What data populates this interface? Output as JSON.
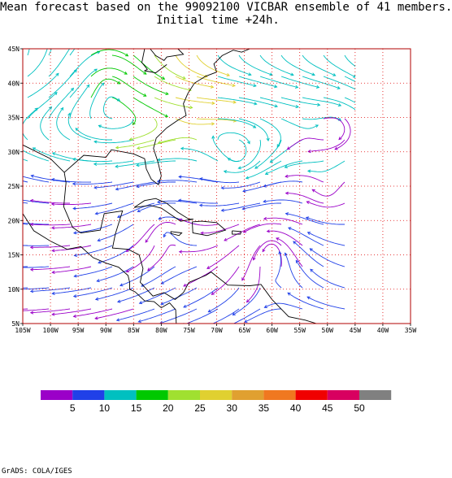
{
  "title": {
    "line1": "Mean forecast based on the 99092100 VICBAR ensemble of 41 members.",
    "line2": "Initial time +24h."
  },
  "map": {
    "lat_labels": [
      "45N",
      "40N",
      "35N",
      "30N",
      "25N",
      "20N",
      "15N",
      "10N",
      "5N"
    ],
    "lon_labels": [
      "105W",
      "100W",
      "95W",
      "90W",
      "85W",
      "80W",
      "75W",
      "70W",
      "65W",
      "60W",
      "55W",
      "50W",
      "45W",
      "40W",
      "35W"
    ],
    "field": "streamlines",
    "data_extent_note": "",
    "frame_color": "#b00000",
    "grid_color": "#e00000"
  },
  "colorbar": {
    "colors": [
      "#9b00c8",
      "#2040e8",
      "#00c0c0",
      "#00c800",
      "#a0e030",
      "#e0d030",
      "#e0a030",
      "#f07820",
      "#f00000",
      "#d80060",
      "#808080"
    ],
    "labels": [
      "5",
      "10",
      "15",
      "20",
      "25",
      "30",
      "35",
      "40",
      "45",
      "50"
    ]
  },
  "footer": "GrADS: COLA/IGES"
}
